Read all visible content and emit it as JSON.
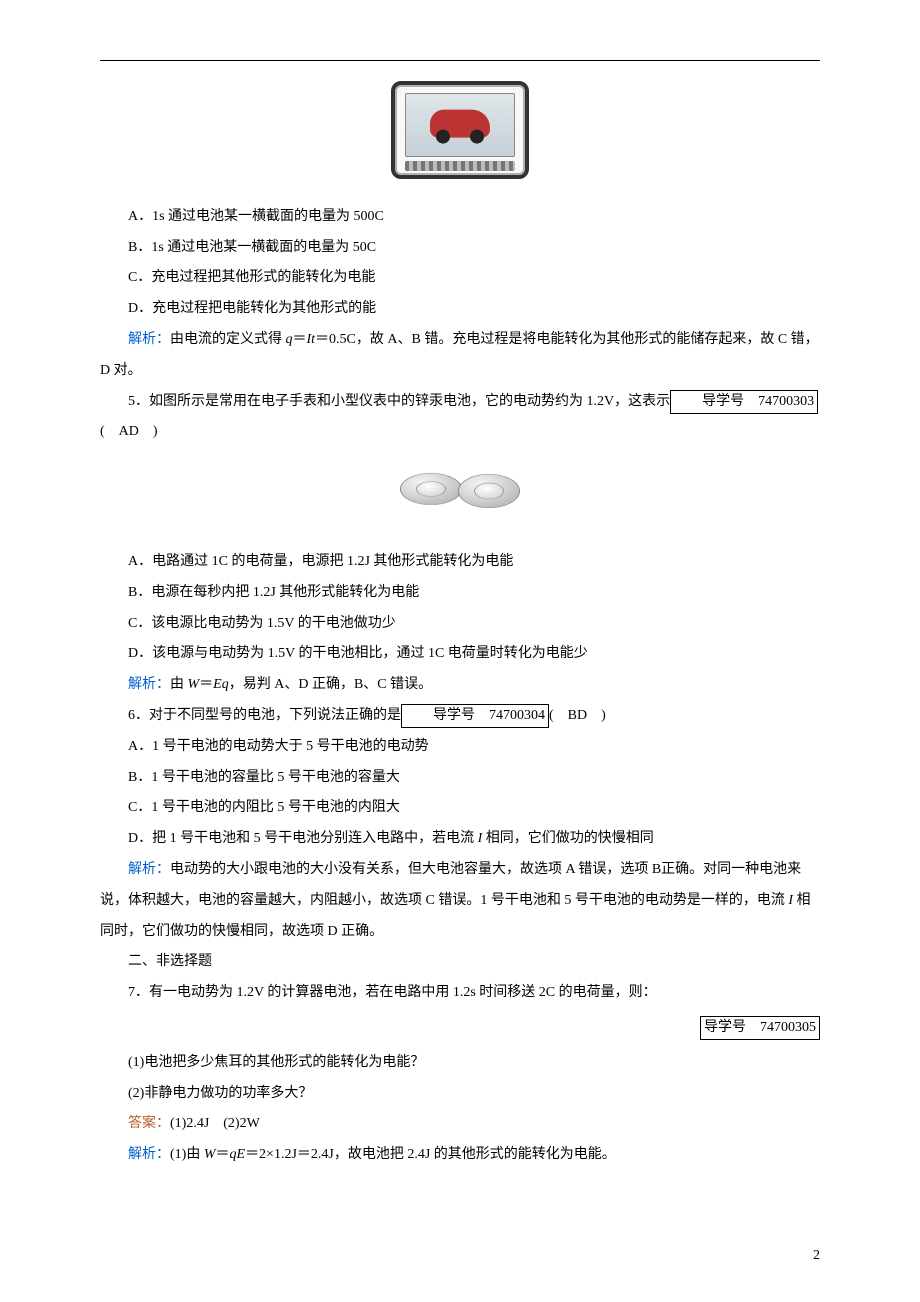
{
  "hr_color": "#000000",
  "text_color": "#000000",
  "blue_color": "#0060d0",
  "red_color": "#b85c2e",
  "bg_color": "#ffffff",
  "font_family": "SimSun",
  "base_fontsize_pt": 10.5,
  "line_height": 2.2,
  "page_number": "2",
  "q4": {
    "options": {
      "A": "A．1s 通过电池某一横截面的电量为 500C",
      "B": "B．1s 通过电池某一横截面的电量为 50C",
      "C": "C．充电过程把其他形式的能转化为电能",
      "D": "D．充电过程把电能转化为其他形式的能"
    },
    "analysis_label": "解析：",
    "analysis_a": "由电流的定义式得 ",
    "analysis_formula_q": "q",
    "analysis_eq": "＝",
    "analysis_formula_It": "It",
    "analysis_b": "＝0.5C，故 A、B 错。充电过程是将电能转化为其他形式的能储存起来，故 C 错，D 对。"
  },
  "q5": {
    "stem_a": "5．如图所示是常用在电子手表和小型仪表中的锌汞电池，它的电动势约为 1.2V，这表示",
    "box": "导学号　74700303",
    "paren": "(　AD　)",
    "options": {
      "A": "A．电路通过 1C 的电荷量，电源把 1.2J 其他形式能转化为电能",
      "B": "B．电源在每秒内把 1.2J 其他形式能转化为电能",
      "C": "C．该电源比电动势为 1.5V 的干电池做功少",
      "D": "D．该电源与电动势为 1.5V 的干电池相比，通过 1C 电荷量时转化为电能少"
    },
    "analysis_label": "解析：",
    "analysis_a": "由 ",
    "analysis_W": "W",
    "analysis_eq": "＝",
    "analysis_Eq": "Eq",
    "analysis_b": "，易判 A、D 正确，B、C 错误。"
  },
  "q6": {
    "stem_a": "6．对于不同型号的电池，下列说法正确的是",
    "box": "导学号　74700304",
    "paren": "(　BD　)",
    "options": {
      "A": "A．1 号干电池的电动势大于 5 号干电池的电动势",
      "B": "B．1 号干电池的容量比 5 号干电池的容量大",
      "C": "C．1 号干电池的内阻比 5 号干电池的内阻大",
      "D_a": "D．把 1 号干电池和 5 号干电池分别连入电路中，若电流 ",
      "D_I": "I",
      "D_b": " 相同，它们做功的快慢相同"
    },
    "analysis_label": "解析：",
    "analysis_a": "电动势的大小跟电池的大小没有关系，但大电池容量大，故选项 A 错误，选项 B正确。对同一种电池来说，体积越大，电池的容量越大，内阻越小，故选项 C 错误。1 号干电池和 5 号干电池的电动势是一样的，电流 ",
    "analysis_I": "I",
    "analysis_b": " 相同时，它们做功的快慢相同，故选项 D 正确。"
  },
  "section2": "二、非选择题",
  "q7": {
    "stem": "7．有一电动势为 1.2V 的计算器电池，若在电路中用 1.2s 时间移送 2C 的电荷量，则：",
    "box": "导学号　74700305",
    "sub1": "(1)电池把多少焦耳的其他形式的能转化为电能？",
    "sub2": "(2)非静电力做功的功率多大？",
    "answer_label": "答案：",
    "answer": "(1)2.4J　(2)2W",
    "analysis_label": "解析：",
    "analysis_a": "(1)由 ",
    "analysis_W": "W",
    "analysis_eq": "＝",
    "analysis_qE": "qE",
    "analysis_b": "＝2×1.2J＝2.4J，故电池把 2.4J 的其他形式的能转化为电能。"
  }
}
